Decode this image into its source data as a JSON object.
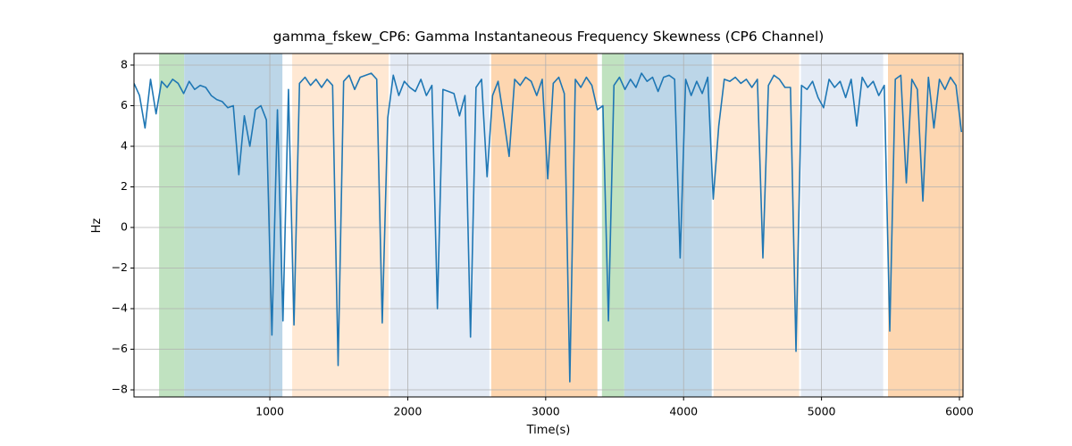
{
  "chart_data": {
    "type": "line",
    "title": "gamma_fskew_CP6: Gamma Instantaneous Frequency Skewness (CP6 Channel)",
    "x_label": "Time(s)",
    "y_label": "Hz",
    "xlim": [
      15,
      6026
    ],
    "ylim": [
      -8.35,
      8.57
    ],
    "xticks": [
      1000,
      2000,
      3000,
      4000,
      5000,
      6000
    ],
    "yticks": [
      {
        "value": -8,
        "label": "−8"
      },
      {
        "value": -6,
        "label": "−6"
      },
      {
        "value": -4,
        "label": "−4"
      },
      {
        "value": -2,
        "label": "−2"
      },
      0,
      2,
      4,
      6,
      8
    ],
    "grid": true,
    "shaded_regions": [
      {
        "start": 197,
        "end": 379,
        "color": "#c0e2c0"
      },
      {
        "start": 379,
        "end": 1091,
        "color": "#bcd6e8"
      },
      {
        "start": 1162,
        "end": 1861,
        "color": "#ffe8d3"
      },
      {
        "start": 1874,
        "end": 2592,
        "color": "#e4ebf5"
      },
      {
        "start": 2605,
        "end": 3375,
        "color": "#fdd6b0"
      },
      {
        "start": 3408,
        "end": 3570,
        "color": "#c0e2c0"
      },
      {
        "start": 3570,
        "end": 4204,
        "color": "#bcd6e8"
      },
      {
        "start": 4217,
        "end": 4838,
        "color": "#ffe8d3"
      },
      {
        "start": 4851,
        "end": 5447,
        "color": "#e4ebf5"
      },
      {
        "start": 5482,
        "end": 6026,
        "color": "#fdd6b0"
      }
    ],
    "x": [
      15,
      55,
      95,
      135,
      175,
      215,
      255,
      295,
      335,
      375,
      415,
      455,
      495,
      535,
      575,
      615,
      655,
      695,
      735,
      775,
      815,
      855,
      895,
      935,
      975,
      1015,
      1055,
      1095,
      1135,
      1175,
      1215,
      1255,
      1295,
      1335,
      1375,
      1415,
      1455,
      1495,
      1535,
      1575,
      1615,
      1655,
      1695,
      1735,
      1775,
      1815,
      1855,
      1895,
      1935,
      1975,
      2015,
      2055,
      2095,
      2135,
      2175,
      2215,
      2255,
      2295,
      2335,
      2375,
      2415,
      2455,
      2495,
      2535,
      2575,
      2615,
      2655,
      2695,
      2735,
      2775,
      2815,
      2855,
      2895,
      2935,
      2975,
      3015,
      3055,
      3095,
      3135,
      3175,
      3215,
      3255,
      3295,
      3335,
      3375,
      3415,
      3455,
      3495,
      3535,
      3575,
      3615,
      3655,
      3695,
      3735,
      3775,
      3815,
      3855,
      3895,
      3935,
      3975,
      4015,
      4055,
      4095,
      4135,
      4175,
      4215,
      4255,
      4295,
      4335,
      4375,
      4415,
      4455,
      4495,
      4535,
      4575,
      4615,
      4655,
      4695,
      4735,
      4775,
      4815,
      4855,
      4895,
      4935,
      4975,
      5015,
      5055,
      5095,
      5135,
      5175,
      5215,
      5255,
      5295,
      5335,
      5375,
      5415,
      5455,
      5495,
      5535,
      5575,
      5615,
      5655,
      5695,
      5735,
      5775,
      5815,
      5855,
      5895,
      5935,
      5975,
      6015
    ],
    "series": [
      {
        "color": "#1f77b4",
        "values": [
          7.1,
          6.5,
          4.9,
          7.3,
          5.6,
          7.2,
          6.9,
          7.3,
          7.1,
          6.6,
          7.2,
          6.8,
          7.0,
          6.9,
          6.5,
          6.3,
          6.2,
          5.9,
          6.0,
          2.6,
          5.5,
          4.0,
          5.8,
          6.0,
          5.3,
          -5.3,
          5.8,
          -4.6,
          6.8,
          -4.8,
          7.1,
          7.4,
          7.0,
          7.3,
          6.9,
          7.3,
          7.0,
          -6.8,
          7.2,
          7.5,
          6.8,
          7.4,
          7.5,
          7.6,
          7.3,
          -4.7,
          5.4,
          7.5,
          6.5,
          7.2,
          6.9,
          6.7,
          7.3,
          6.5,
          7.0,
          -4.0,
          6.8,
          6.7,
          6.6,
          5.5,
          6.5,
          -5.4,
          6.9,
          7.3,
          2.5,
          6.5,
          7.2,
          5.4,
          3.5,
          7.3,
          7.0,
          7.4,
          7.2,
          6.5,
          7.3,
          2.4,
          7.1,
          7.4,
          6.6,
          -7.6,
          7.3,
          6.9,
          7.4,
          7.0,
          5.8,
          6.0,
          -4.6,
          7.0,
          7.4,
          6.8,
          7.3,
          6.9,
          7.6,
          7.2,
          7.4,
          6.7,
          7.4,
          7.5,
          7.3,
          -1.5,
          7.3,
          6.5,
          7.2,
          6.6,
          7.4,
          1.4,
          5.0,
          7.3,
          7.2,
          7.4,
          7.1,
          7.3,
          6.9,
          7.3,
          -1.5,
          7.0,
          7.5,
          7.3,
          6.9,
          6.9,
          -6.1,
          7.0,
          6.8,
          7.2,
          6.4,
          5.9,
          7.3,
          6.9,
          7.2,
          6.4,
          7.3,
          5.0,
          7.4,
          6.9,
          7.2,
          6.5,
          7.0,
          -5.1,
          7.3,
          7.5,
          2.2,
          7.3,
          6.8,
          1.3,
          7.4,
          4.9,
          7.3,
          6.8,
          7.4,
          7.0,
          4.7
        ]
      }
    ]
  }
}
